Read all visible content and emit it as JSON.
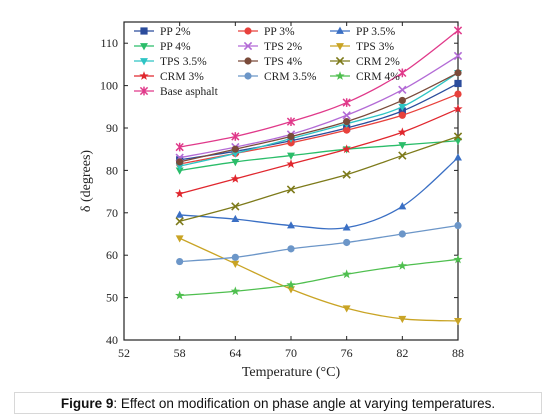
{
  "caption": {
    "label": "Figure 9",
    "text": ": Effect on modification on phase angle at varying temperatures."
  },
  "chart_data": {
    "type": "line",
    "title": "",
    "xlabel": "Temperature (°C)",
    "ylabel": "δ (degrees)",
    "xlim": [
      52,
      88
    ],
    "ylim": [
      40,
      115
    ],
    "xticks": [
      52,
      58,
      64,
      70,
      76,
      82,
      88
    ],
    "yticks": [
      40,
      50,
      60,
      70,
      80,
      90,
      100,
      110
    ],
    "grid": false,
    "legend_position": "top-left",
    "x": [
      58,
      64,
      70,
      76,
      82,
      88
    ],
    "series": [
      {
        "name": "PP 2%",
        "color": "#2b4c9c",
        "marker": "square",
        "values": [
          82.5,
          84.5,
          87.0,
          90.0,
          94.0,
          100.5
        ]
      },
      {
        "name": "PP 3%",
        "color": "#e8413c",
        "marker": "circle",
        "values": [
          81.5,
          84.0,
          86.5,
          89.5,
          93.0,
          98.0
        ]
      },
      {
        "name": "PP 3.5%",
        "color": "#3a6fc4",
        "marker": "triangle",
        "values": [
          69.5,
          68.5,
          67.0,
          66.5,
          71.5,
          83.0
        ]
      },
      {
        "name": "PP 4%",
        "color": "#2bbd6a",
        "marker": "triangle-down",
        "values": [
          80.0,
          82.0,
          83.5,
          85.0,
          86.0,
          87.0
        ]
      },
      {
        "name": "TPS 2%",
        "color": "#b36bd6",
        "marker": "x",
        "values": [
          83.0,
          85.5,
          88.5,
          93.0,
          99.0,
          107.0
        ]
      },
      {
        "name": "TPS 3%",
        "color": "#c9a425",
        "marker": "triangle-down",
        "values": [
          64.0,
          58.0,
          52.0,
          47.5,
          45.0,
          44.5
        ]
      },
      {
        "name": "TPS 3.5%",
        "color": "#2ec4c4",
        "marker": "triangle-down",
        "values": [
          81.0,
          84.0,
          87.5,
          91.0,
          95.0,
          103.0
        ]
      },
      {
        "name": "TPS 4%",
        "color": "#7a4b3a",
        "marker": "circle",
        "values": [
          82.0,
          85.0,
          88.0,
          91.5,
          96.5,
          103.0
        ]
      },
      {
        "name": "CRM 2%",
        "color": "#7d7a1a",
        "marker": "x",
        "values": [
          68.0,
          71.5,
          75.5,
          79.0,
          83.5,
          88.0
        ]
      },
      {
        "name": "CRM 3%",
        "color": "#e0272e",
        "marker": "star",
        "values": [
          74.5,
          78.0,
          81.5,
          85.0,
          89.0,
          94.5
        ]
      },
      {
        "name": "CRM 3.5%",
        "color": "#6c96c8",
        "marker": "circle",
        "values": [
          58.5,
          59.5,
          61.5,
          63.0,
          65.0,
          67.0
        ]
      },
      {
        "name": "CRM 4%",
        "color": "#4fbf4f",
        "marker": "star",
        "values": [
          50.5,
          51.5,
          53.0,
          55.5,
          57.5,
          59.0
        ]
      },
      {
        "name": "Base asphalt",
        "color": "#e0398a",
        "marker": "asterisk",
        "values": [
          85.5,
          88.0,
          91.5,
          96.0,
          103.0,
          113.0
        ]
      }
    ]
  }
}
